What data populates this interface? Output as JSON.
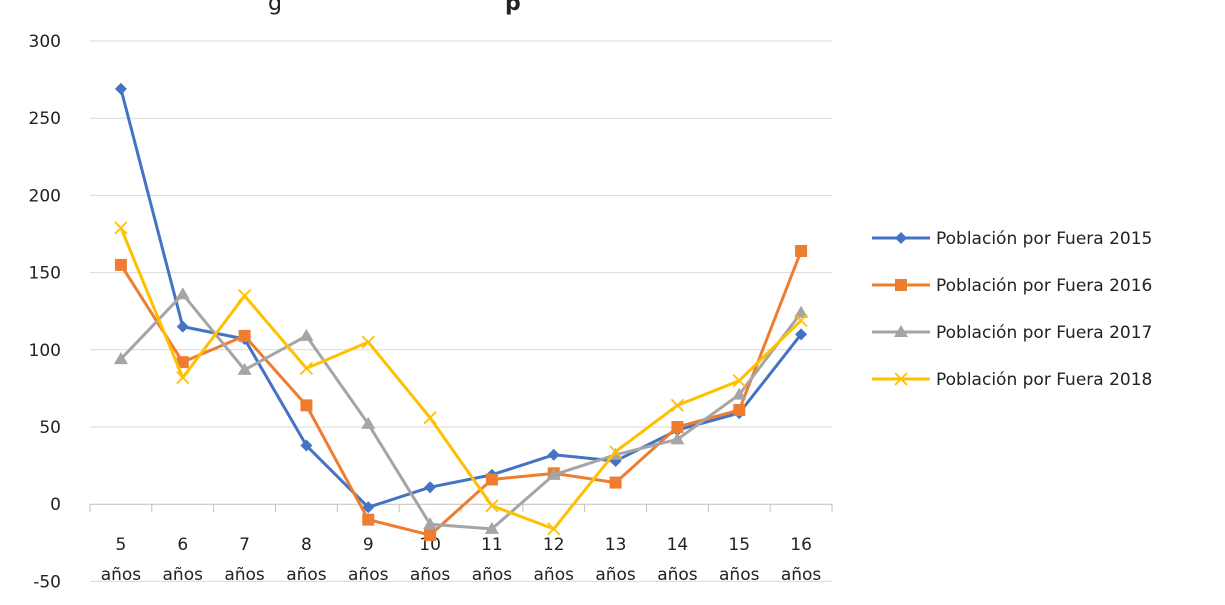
{
  "chart_data": {
    "type": "line",
    "title_fragment": "g",
    "title_fragment_bold": "p",
    "categories": [
      [
        "5",
        "años"
      ],
      [
        "6",
        "años"
      ],
      [
        "7",
        "años"
      ],
      [
        "8",
        "años"
      ],
      [
        "9",
        "años"
      ],
      [
        "10",
        "años"
      ],
      [
        "11",
        "años"
      ],
      [
        "12",
        "años"
      ],
      [
        "13",
        "años"
      ],
      [
        "14",
        "años"
      ],
      [
        "15",
        "años"
      ],
      [
        "16",
        "años"
      ]
    ],
    "ylim": [
      -50,
      300
    ],
    "yticks": [
      "300",
      "250",
      "200",
      "150",
      "100",
      "50",
      "0",
      "-50"
    ],
    "grid": true,
    "legend_position": "right",
    "series": [
      {
        "name": "Población por Fuera 2015",
        "color": "#4472C4",
        "marker": "diamond",
        "values": [
          269,
          115,
          107,
          38,
          -2,
          11,
          19,
          32,
          28,
          48,
          59,
          110
        ]
      },
      {
        "name": "Población por Fuera 2016",
        "color": "#ED7D31",
        "marker": "square",
        "values": [
          155,
          92,
          109,
          64,
          -10,
          -20,
          16,
          20,
          14,
          50,
          61,
          164
        ]
      },
      {
        "name": "Población por Fuera 2017",
        "color": "#A5A5A5",
        "marker": "triangle",
        "values": [
          94,
          136,
          87,
          109,
          52,
          -13,
          -16,
          19,
          32,
          42,
          71,
          124
        ]
      },
      {
        "name": "Población por Fuera 2018",
        "color": "#FFC000",
        "marker": "x",
        "values": [
          179,
          82,
          135,
          88,
          105,
          56,
          -1,
          -16,
          34,
          64,
          80,
          119
        ]
      }
    ]
  }
}
